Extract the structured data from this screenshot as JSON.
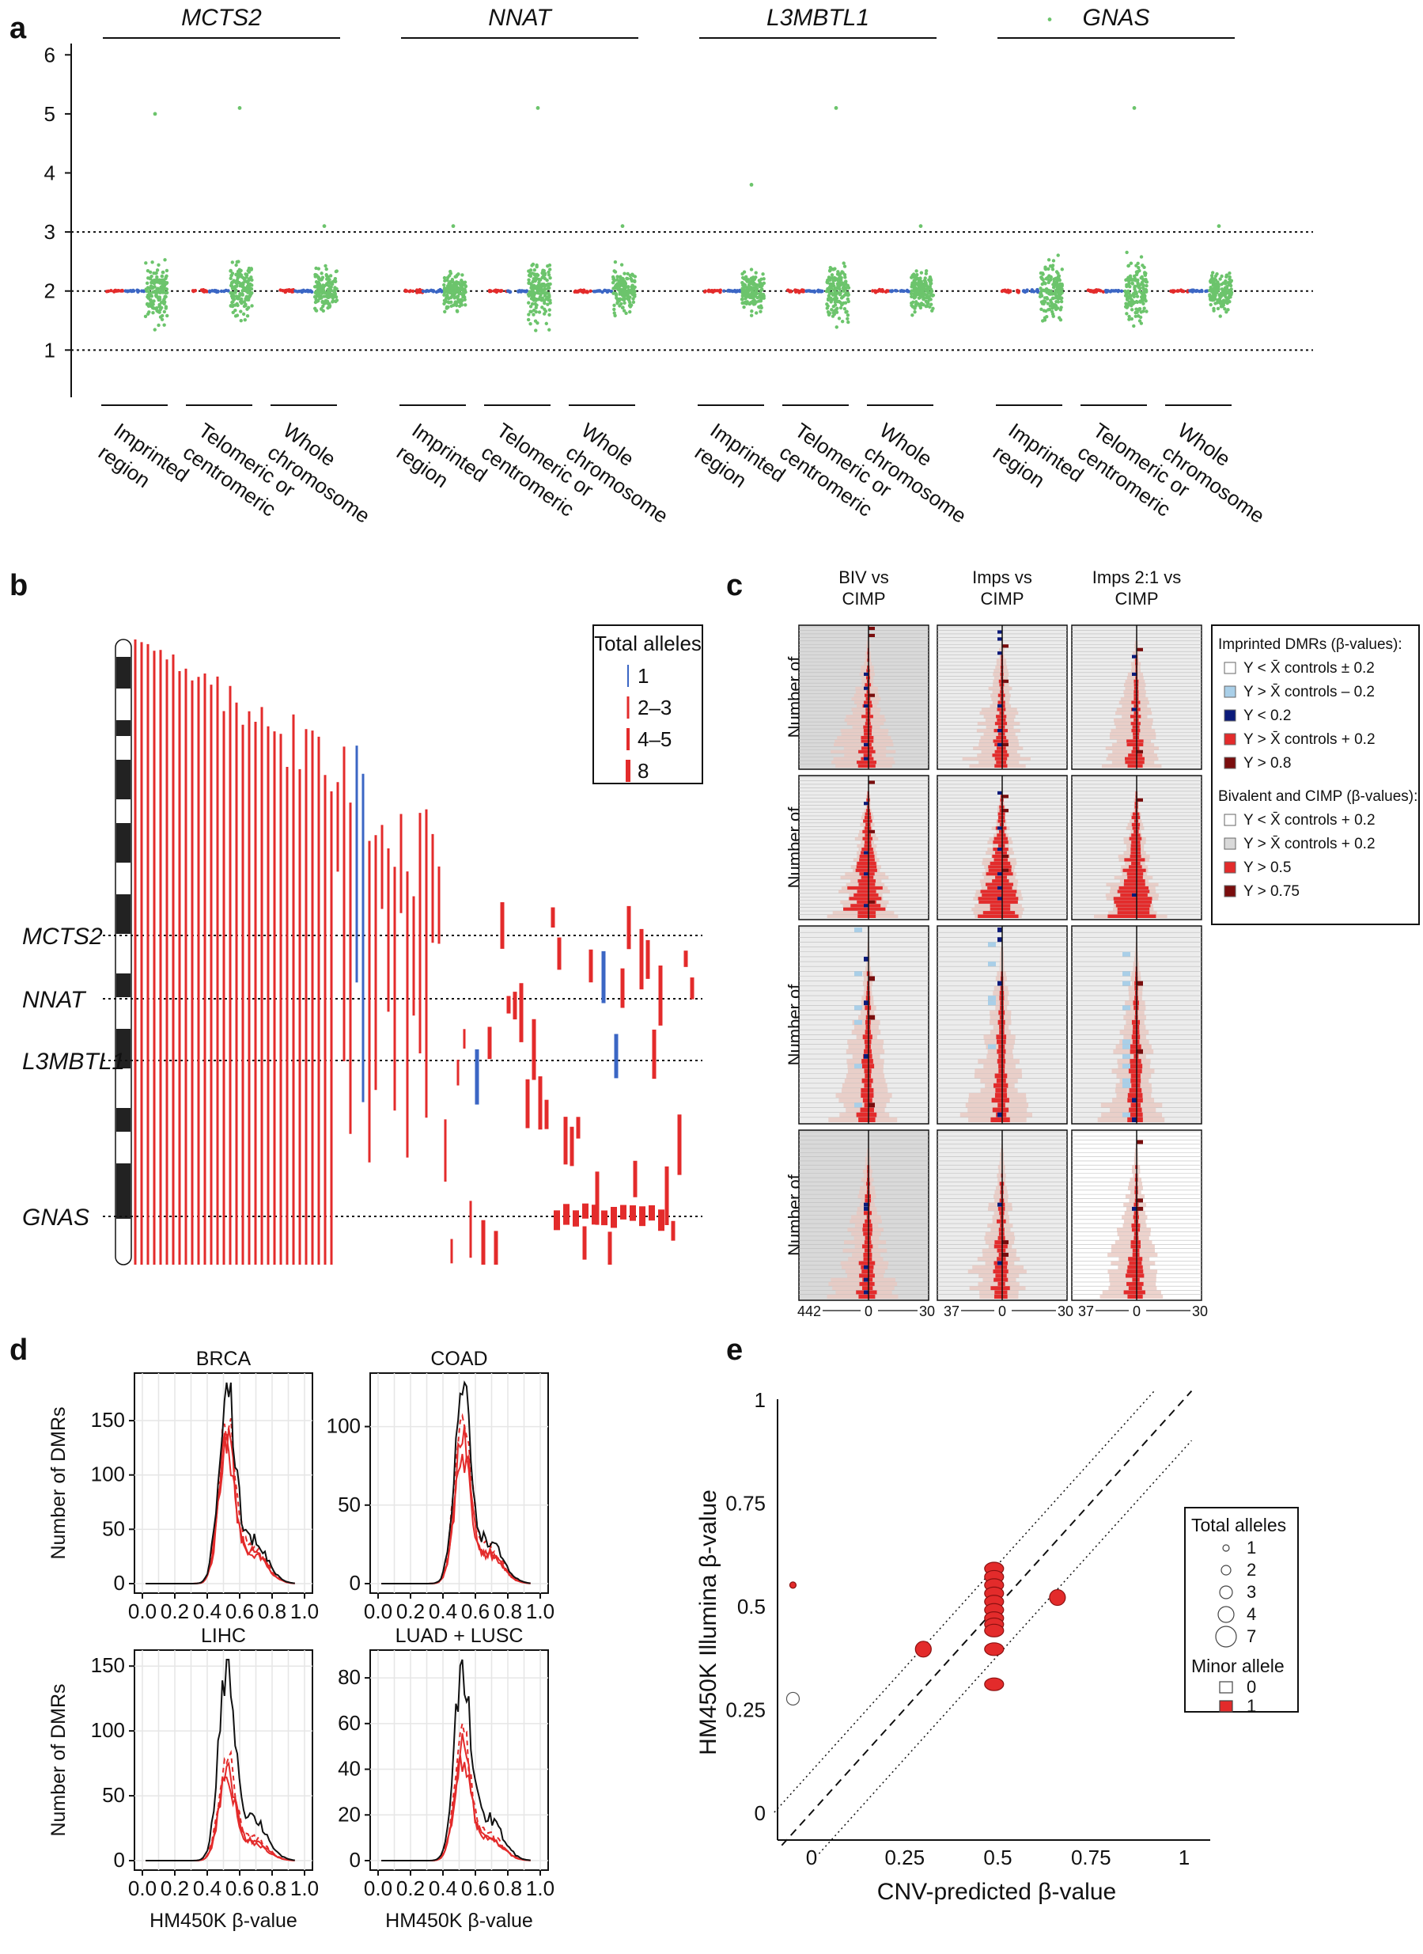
{
  "colors": {
    "red": "#e32b2b",
    "blue": "#3b66c4",
    "green": "#6cc46c",
    "navy": "#0b1a7a",
    "lightblue": "#a9cfe8",
    "darkred": "#7a0d0d",
    "grey": "#d8d8d8"
  },
  "panels": {
    "a": "a",
    "b": "b",
    "c": "c",
    "d": "d",
    "e": "e"
  },
  "chart_data": [
    {
      "id": "a",
      "type": "scatter",
      "genes": [
        "MCTS2",
        "NNAT",
        "L3MBTL1",
        "GNAS"
      ],
      "groups": [
        "Imprinted\nregion",
        "Telomeric or\ncentromeric",
        "Whole\nchromosome"
      ],
      "yticks": [
        "1",
        "2",
        "3",
        "4",
        "5",
        "6"
      ],
      "ylim": [
        0.2,
        6.5
      ],
      "reference_lines": [
        1,
        2,
        3
      ],
      "series_colors": [
        "red",
        "blue",
        "green"
      ],
      "max_values": [
        [
          5.0,
          5.1,
          3.1
        ],
        [
          3.1,
          5.1,
          3.1
        ],
        [
          3.8,
          5.1,
          3.1
        ],
        [
          6.6,
          5.1,
          3.1
        ]
      ]
    },
    {
      "id": "b",
      "type": "segments",
      "genes": [
        "MCTS2",
        "NNAT",
        "L3MBTL1",
        "GNAS"
      ],
      "legend_title": "Total alleles",
      "legend": [
        "1",
        "2–3",
        "4–5",
        "8"
      ]
    },
    {
      "id": "c",
      "type": "bar",
      "columns": [
        "BIV vs\nCIMP",
        "Imps vs\nCIMP",
        "Imps 2:1 vs\nCIMP"
      ],
      "rows": [
        "Number of\nBRCA",
        "Number of\nCOAD",
        "Number of\nLIHC",
        "Number of\nLUAD + LUSC"
      ],
      "xaxis": [
        [
          "442",
          "0",
          "30"
        ],
        [
          "37",
          "0",
          "30"
        ],
        [
          "37",
          "0",
          "30"
        ]
      ],
      "legend_title_1": "Imprinted DMRs (β-values):",
      "legend_1": [
        "Y < X̄ controls ± 0.2",
        "Y > X̄ controls – 0.2",
        "Y < 0.2",
        "Y > X̄ controls + 0.2",
        "Y > 0.8"
      ],
      "legend_title_2": "Bivalent and CIMP (β-values):",
      "legend_2": [
        "Y < X̄ controls + 0.2",
        "Y > X̄ controls + 0.2",
        "Y > 0.5",
        "Y > 0.75"
      ]
    },
    {
      "id": "d",
      "type": "line",
      "ylabel": "Number of DMRs",
      "xlabel": "HM450K β-value",
      "xticks": [
        "0.0",
        "0.2",
        "0.4",
        "0.6",
        "0.8",
        "1.0"
      ],
      "subplots": [
        {
          "title": "BRCA",
          "ylim": [
            0,
            185
          ],
          "yticks": [
            "0",
            "50",
            "100",
            "150"
          ],
          "peak_black": 182,
          "peak_red": 130,
          "peak_red_dash": 150
        },
        {
          "title": "COAD",
          "ylim": [
            0,
            128
          ],
          "yticks": [
            "0",
            "50",
            "100"
          ],
          "peak_black": 122,
          "peak_red": 88,
          "peak_red_dash": 104
        },
        {
          "title": "LIHC",
          "ylim": [
            0,
            155
          ],
          "yticks": [
            "0",
            "50",
            "100",
            "150"
          ],
          "peak_black": 150,
          "peak_red": 68,
          "peak_red_dash": 80
        },
        {
          "title": "LUAD + LUSC",
          "ylim": [
            0,
            88
          ],
          "yticks": [
            "0",
            "20",
            "40",
            "60",
            "80"
          ],
          "peak_black": 84,
          "peak_red": 47,
          "peak_red_dash": 53
        }
      ]
    },
    {
      "id": "e",
      "type": "scatter",
      "xlabel": "CNV-predicted β-value",
      "ylabel": "HM450K Illumina β-value",
      "xticks": [
        "0",
        "0.25",
        "0.5",
        "0.75",
        "1"
      ],
      "yticks": [
        "0",
        "0.25",
        "0.5",
        "0.75",
        "1"
      ],
      "xlim": [
        -0.1,
        1.05
      ],
      "ylim": [
        -0.1,
        1.05
      ],
      "points": [
        {
          "x": -0.05,
          "y": 0.275,
          "alleles": 3,
          "minor": 0
        },
        {
          "x": -0.05,
          "y": 0.55,
          "alleles": 1,
          "minor": 1
        },
        {
          "x": 0.3,
          "y": 0.395,
          "alleles": 4,
          "minor": 1
        },
        {
          "x": 0.49,
          "y": 0.59,
          "alleles": 3,
          "minor": 1
        },
        {
          "x": 0.49,
          "y": 0.57,
          "alleles": 3,
          "minor": 1
        },
        {
          "x": 0.49,
          "y": 0.55,
          "alleles": 3,
          "minor": 1
        },
        {
          "x": 0.49,
          "y": 0.53,
          "alleles": 3,
          "minor": 1
        },
        {
          "x": 0.49,
          "y": 0.51,
          "alleles": 3,
          "minor": 1
        },
        {
          "x": 0.49,
          "y": 0.49,
          "alleles": 3,
          "minor": 1
        },
        {
          "x": 0.49,
          "y": 0.47,
          "alleles": 3,
          "minor": 1
        },
        {
          "x": 0.49,
          "y": 0.455,
          "alleles": 3,
          "minor": 1
        },
        {
          "x": 0.49,
          "y": 0.44,
          "alleles": 3,
          "minor": 1
        },
        {
          "x": 0.49,
          "y": 0.395,
          "alleles": 2,
          "minor": 1
        },
        {
          "x": 0.49,
          "y": 0.31,
          "alleles": 3,
          "minor": 1
        },
        {
          "x": 0.66,
          "y": 0.52,
          "alleles": 4,
          "minor": 1
        }
      ],
      "legend_title_1": "Total alleles",
      "legend_sizes": [
        "1",
        "2",
        "3",
        "4",
        "7"
      ],
      "legend_title_2": "Minor allele",
      "legend_minor": [
        "0",
        "1"
      ]
    }
  ]
}
